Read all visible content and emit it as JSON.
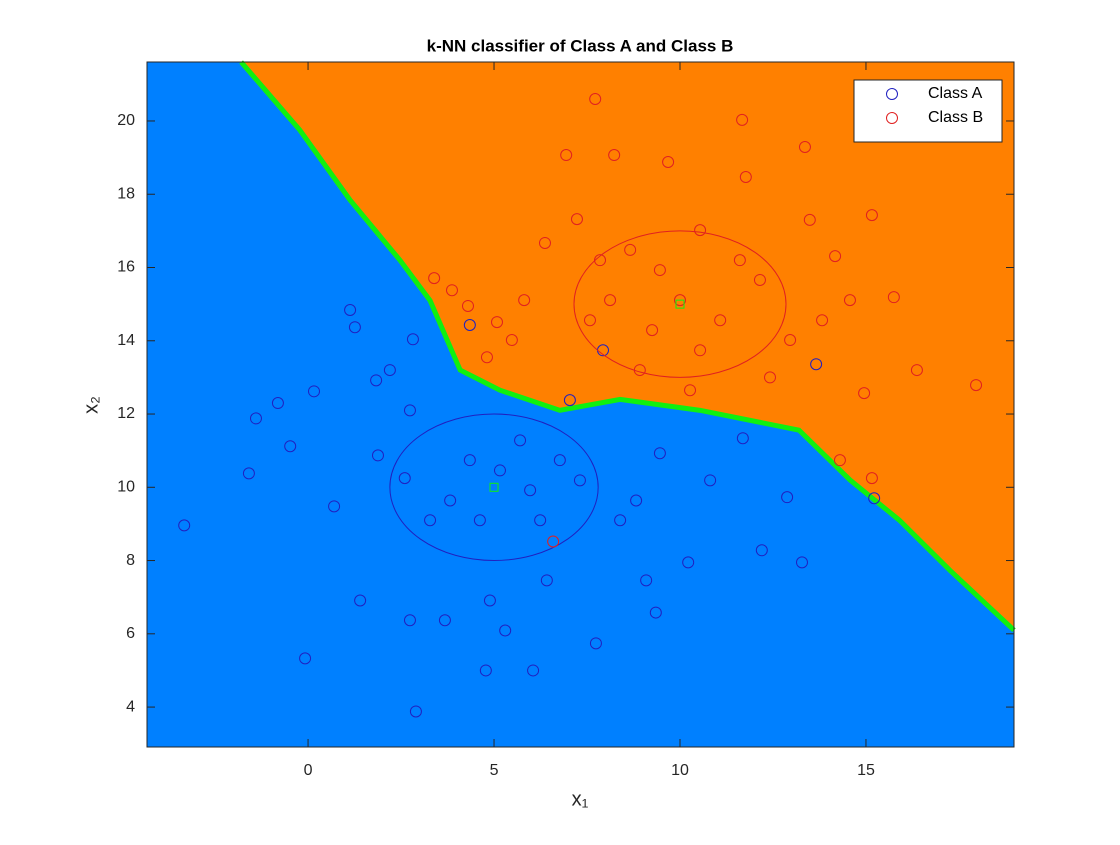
{
  "chart_data": {
    "type": "scatter",
    "title": "k-NN classifier of Class A and Class B",
    "xlabel": "x₁",
    "ylabel": "x₂",
    "xlim": [
      -4.33,
      18.98
    ],
    "ylim": [
      2.91,
      21.61
    ],
    "xticks": [
      0,
      5,
      10,
      15
    ],
    "yticks": [
      4,
      6,
      8,
      10,
      12,
      14,
      16,
      18,
      20
    ],
    "legend_position": "northeast",
    "regions": {
      "colors": [
        "#0080ff",
        "#ff8000"
      ],
      "boundary_color": "#10f010"
    },
    "decision_boundary": {
      "x": [
        -1.8,
        -0.22,
        1.13,
        2.47,
        3.28,
        4.09,
        5.16,
        6.77,
        8.39,
        10.54,
        13.2,
        14.57,
        15.9,
        17.26,
        18.98
      ],
      "y": [
        21.61,
        19.75,
        17.84,
        16.2,
        15.1,
        13.2,
        12.65,
        12.1,
        12.4,
        12.1,
        11.56,
        10.2,
        9.1,
        7.73,
        6.1
      ]
    },
    "series": [
      {
        "name": "Class A",
        "color": "#2020c0",
        "ellipse": {
          "center": [
            5,
            10
          ],
          "radius": [
            2.8,
            2
          ]
        },
        "x": [
          -3.33,
          -1.59,
          -1.4,
          -0.81,
          -0.48,
          -0.08,
          0.16,
          0.7,
          1.13,
          1.26,
          1.4,
          1.88,
          1.83,
          2.2,
          2.6,
          2.74,
          2.82,
          2.9,
          2.74,
          3.28,
          3.68,
          3.82,
          4.35,
          4.35,
          4.62,
          4.78,
          4.89,
          5.16,
          5.3,
          5.7,
          5.97,
          6.05,
          6.24,
          6.42,
          6.77,
          7.04,
          7.31,
          7.74,
          7.93,
          8.39,
          8.82,
          9.09,
          9.35,
          9.46,
          10.22,
          10.81,
          11.69,
          12.2,
          12.88,
          13.28,
          13.66,
          15.22
        ],
        "values": [
          8.96,
          10.38,
          11.88,
          12.3,
          11.12,
          5.33,
          12.62,
          9.48,
          14.84,
          14.37,
          6.91,
          10.87,
          12.92,
          13.2,
          10.25,
          12.1,
          14.04,
          3.88,
          6.37,
          9.1,
          6.37,
          9.64,
          14.43,
          10.74,
          9.1,
          5.0,
          6.91,
          10.46,
          6.09,
          11.28,
          9.92,
          5.0,
          9.1,
          7.46,
          10.74,
          12.38,
          10.19,
          5.74,
          13.74,
          9.1,
          9.64,
          7.46,
          6.58,
          10.93,
          7.95,
          10.19,
          11.34,
          8.28,
          9.73,
          7.95,
          13.36,
          9.7
        ]
      },
      {
        "name": "Class B",
        "color": "#e02020",
        "ellipse": {
          "center": [
            10,
            15
          ],
          "radius": [
            2.85,
            2
          ]
        },
        "x": [
          3.39,
          3.87,
          4.3,
          4.81,
          5.08,
          5.48,
          5.81,
          6.37,
          6.59,
          6.94,
          7.23,
          7.72,
          8.23,
          8.66,
          8.92,
          9.25,
          9.68,
          10.0,
          10.27,
          10.54,
          11.08,
          11.61,
          11.67,
          11.77,
          12.15,
          12.42,
          12.96,
          13.36,
          13.49,
          13.82,
          14.17,
          14.57,
          14.95,
          15.16,
          15.16,
          15.75,
          16.37,
          17.96,
          14.3,
          10.54,
          8.12,
          9.46,
          7.85,
          7.58
        ],
        "values": [
          15.71,
          15.38,
          14.95,
          13.55,
          14.51,
          14.02,
          15.11,
          16.67,
          8.52,
          19.07,
          17.32,
          20.6,
          19.07,
          16.48,
          13.2,
          14.29,
          18.88,
          15.11,
          12.65,
          17.02,
          14.56,
          16.2,
          20.03,
          18.47,
          15.66,
          13.0,
          14.02,
          19.29,
          17.3,
          14.56,
          16.31,
          15.11,
          12.57,
          10.25,
          17.43,
          15.19,
          13.2,
          12.79,
          10.74,
          13.74,
          15.11,
          15.93,
          16.2,
          14.56
        ]
      }
    ]
  }
}
